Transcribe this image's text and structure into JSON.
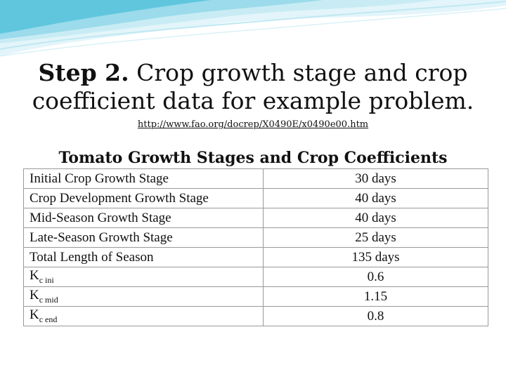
{
  "title": {
    "step": "Step 2.",
    "line1": "Crop growth stage and crop",
    "line2": "coefficient data for example problem."
  },
  "link": "http://www.fao.org/docrep/X0490E/x0490e00.htm",
  "table_title": "Tomato Growth Stages and Crop Coefficients",
  "rows": [
    {
      "label": "Initial Crop Growth Stage",
      "value": "30 days"
    },
    {
      "label": "Crop Development Growth Stage",
      "value": "40 days"
    },
    {
      "label": "Mid-Season Growth Stage",
      "value": "40 days"
    },
    {
      "label": "Late-Season Growth Stage",
      "value": "25 days"
    },
    {
      "label": "Total Length of Season",
      "value": "135 days"
    }
  ],
  "kc_rows": [
    {
      "base": "K",
      "sub": "c ini",
      "value": "0.6"
    },
    {
      "base": "K",
      "sub": "c mid",
      "value": "1.15"
    },
    {
      "base": "K",
      "sub": "c end",
      "value": "0.8"
    }
  ],
  "colors": {
    "wave_dark": "#5fc6dd",
    "wave_light": "#c9ecf4"
  }
}
